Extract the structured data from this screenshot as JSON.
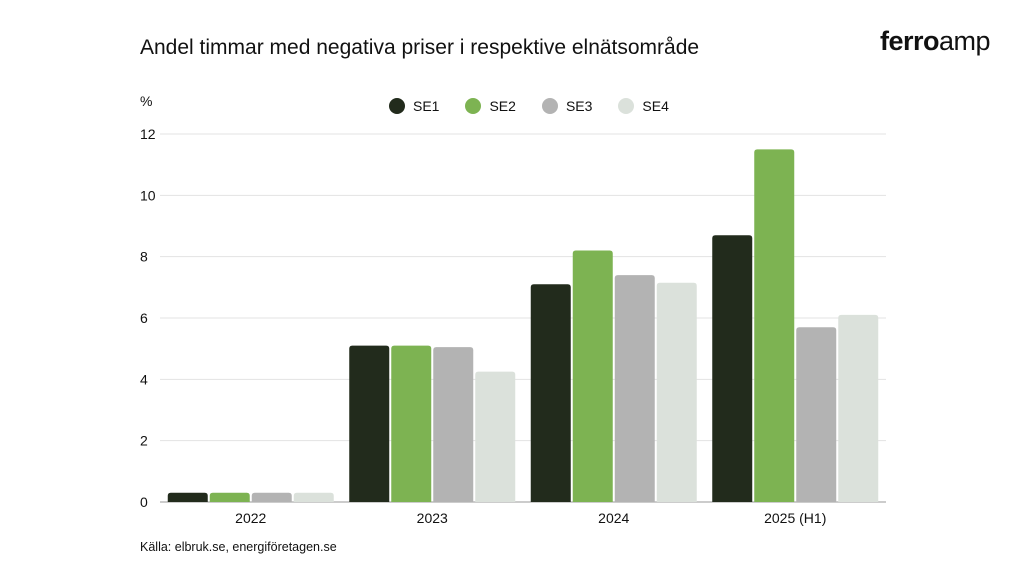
{
  "title": "Andel timmar med negativa priser i respektive elnätsområde",
  "brand": {
    "part1": "ferro",
    "part2": "amp"
  },
  "source": "Källa: elbruk.se, energiföretagen.se",
  "chart_data": {
    "type": "bar",
    "ylabel": "%",
    "ylim": [
      0,
      12
    ],
    "yticks": [
      0,
      2,
      4,
      6,
      8,
      10,
      12
    ],
    "categories": [
      "2022",
      "2023",
      "2024",
      "2025 (H1)"
    ],
    "grid": true,
    "legend_position": "top-center",
    "series": [
      {
        "name": "SE1",
        "color": "#222b1c",
        "values": [
          0.3,
          5.1,
          7.1,
          8.7
        ]
      },
      {
        "name": "SE2",
        "color": "#7db352",
        "values": [
          0.3,
          5.1,
          8.2,
          11.5
        ]
      },
      {
        "name": "SE3",
        "color": "#b3b3b3",
        "values": [
          0.3,
          5.05,
          7.4,
          5.7
        ]
      },
      {
        "name": "SE4",
        "color": "#dbe1db",
        "values": [
          0.3,
          4.25,
          7.15,
          6.1
        ]
      }
    ]
  }
}
